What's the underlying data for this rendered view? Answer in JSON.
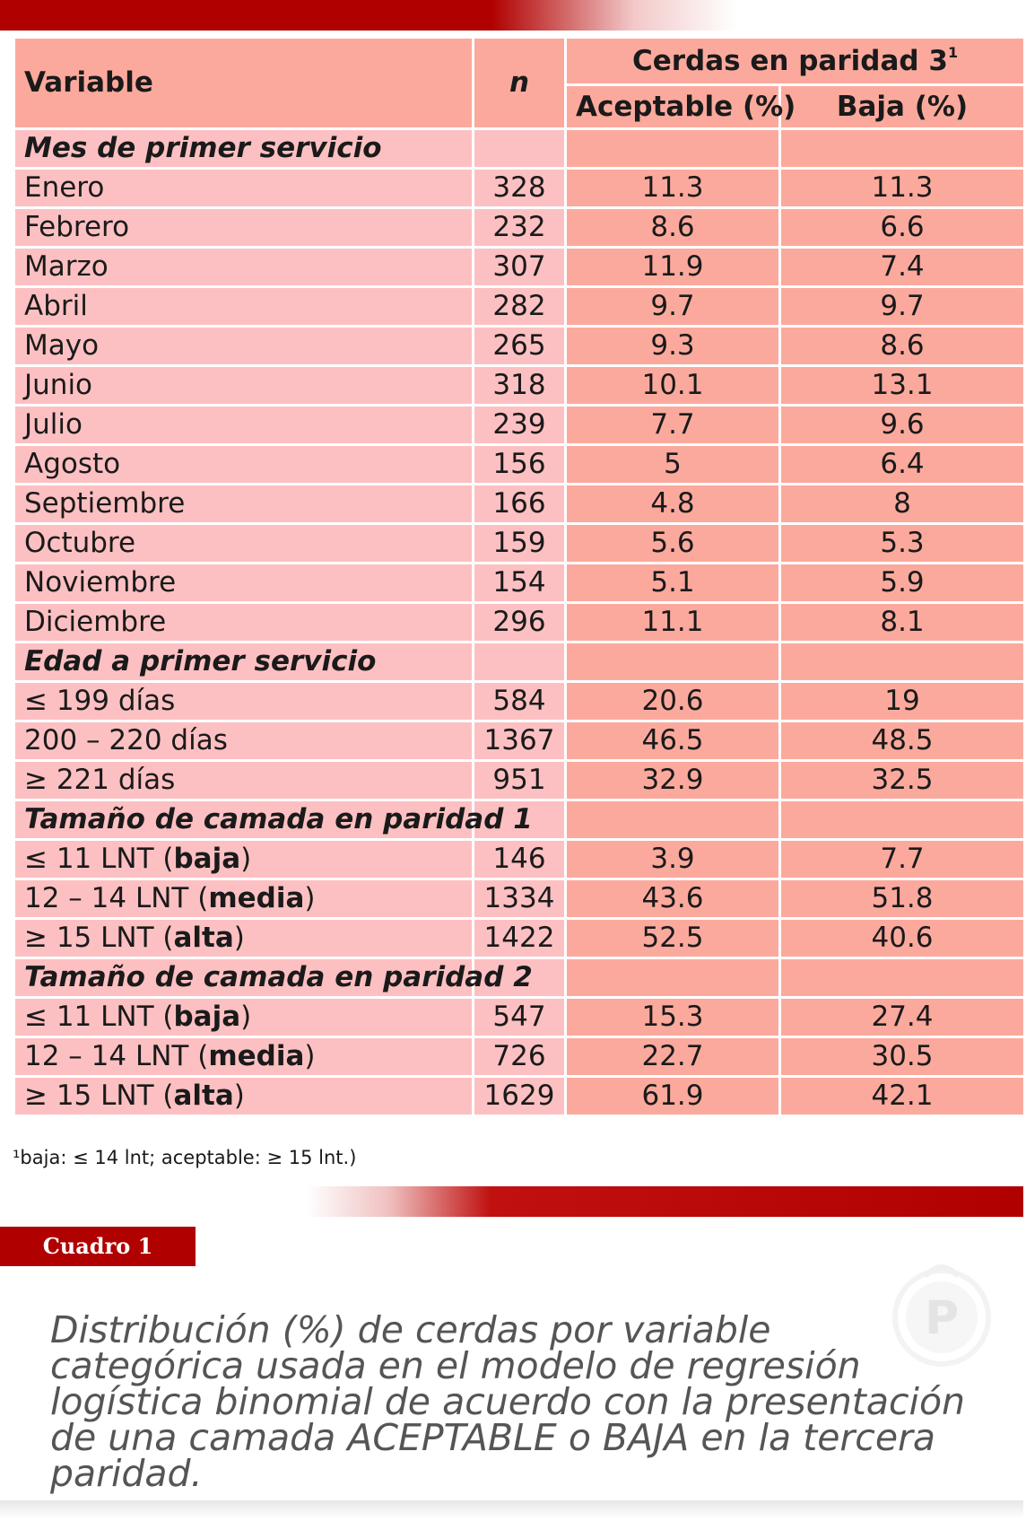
{
  "header": {
    "variable": "Variable",
    "n": "n",
    "group": "Cerdas en paridad 3",
    "group_sup": "1",
    "col_aceptable": "Aceptable (%)",
    "col_baja": "Baja (%)"
  },
  "sections": [
    {
      "title": "Mes de primer servicio",
      "rows": [
        {
          "label": "Enero",
          "n": "328",
          "aceptable": "11.3",
          "baja": "11.3"
        },
        {
          "label": "Febrero",
          "n": "232",
          "aceptable": "8.6",
          "baja": "6.6"
        },
        {
          "label": "Marzo",
          "n": "307",
          "aceptable": "11.9",
          "baja": "7.4"
        },
        {
          "label": "Abril",
          "n": "282",
          "aceptable": "9.7",
          "baja": "9.7"
        },
        {
          "label": "Mayo",
          "n": "265",
          "aceptable": "9.3",
          "baja": "8.6"
        },
        {
          "label": "Junio",
          "n": "318",
          "aceptable": "10.1",
          "baja": "13.1"
        },
        {
          "label": "Julio",
          "n": "239",
          "aceptable": "7.7",
          "baja": "9.6"
        },
        {
          "label": "Agosto",
          "n": "156",
          "aceptable": "5",
          "baja": "6.4"
        },
        {
          "label": "Septiembre",
          "n": "166",
          "aceptable": "4.8",
          "baja": "8"
        },
        {
          "label": "Octubre",
          "n": "159",
          "aceptable": "5.6",
          "baja": "5.3"
        },
        {
          "label": "Noviembre",
          "n": "154",
          "aceptable": "5.1",
          "baja": "5.9"
        },
        {
          "label": "Diciembre",
          "n": "296",
          "aceptable": "11.1",
          "baja": "8.1"
        }
      ]
    },
    {
      "title": "Edad a primer servicio",
      "rows": [
        {
          "label": "≤ 199 días",
          "n": "584",
          "aceptable": "20.6",
          "baja": "19"
        },
        {
          "label": "200 – 220 días",
          "n": "1367",
          "aceptable": "46.5",
          "baja": "48.5"
        },
        {
          "label": "≥ 221 días",
          "n": "951",
          "aceptable": "32.9",
          "baja": "32.5"
        }
      ]
    },
    {
      "title": "Tamaño de camada en paridad 1",
      "rows": [
        {
          "label": "≤ 11 LNT (",
          "bold": "baja",
          "tail": ")",
          "n": "146",
          "aceptable": "3.9",
          "baja": "7.7"
        },
        {
          "label": "12 – 14 LNT (",
          "bold": "media",
          "tail": ")",
          "n": "1334",
          "aceptable": "43.6",
          "baja": "51.8"
        },
        {
          "label": "≥ 15 LNT (",
          "bold": "alta",
          "tail": ")",
          "n": "1422",
          "aceptable": "52.5",
          "baja": "40.6"
        }
      ]
    },
    {
      "title": "Tamaño de camada en paridad 2",
      "rows": [
        {
          "label": "≤ 11 LNT (",
          "bold": "baja",
          "tail": ")",
          "n": "547",
          "aceptable": "15.3",
          "baja": "27.4"
        },
        {
          "label": "12 – 14 LNT (",
          "bold": "media",
          "tail": ")",
          "n": "726",
          "aceptable": "22.7",
          "baja": "30.5"
        },
        {
          "label": "≥ 15 LNT (",
          "bold": "alta",
          "tail": ")",
          "n": "1629",
          "aceptable": "61.9",
          "baja": "42.1"
        }
      ]
    }
  ],
  "footnote": "¹baja: ≤ 14 lnt; aceptable: ≥ 15 lnt.)",
  "cuadro_label": "Cuadro 1",
  "logo_letter": "P",
  "caption": "Distribución (%) de cerdas por variable categórica usada en el modelo de regresión logística binomial de acuerdo con la presentación de una camada ACEPTABLE o BAJA en la tercera paridad.",
  "colors": {
    "brand_red": "#b00000",
    "header_salmon": "#fca99d",
    "row_pink": "#fdc0c2"
  }
}
